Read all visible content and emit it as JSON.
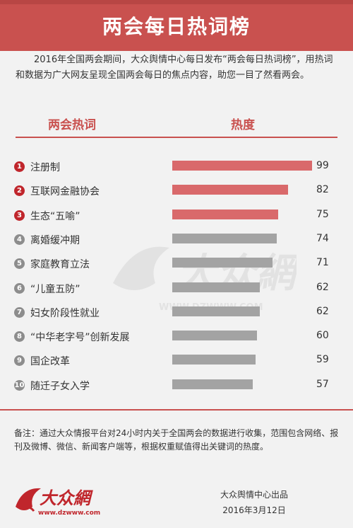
{
  "title": "两会每日热词榜",
  "intro": "2016年全国两会期间，大众舆情中心每日发布“两会每日热词榜”，用热词和数据为广大网友呈现全国两会每日的焦点内容，助您一目了然看两会。",
  "columns": {
    "term": "两会热词",
    "heat": "热度"
  },
  "colors": {
    "accent": "#c9514f",
    "top_bar": "#d9696b",
    "other_bar": "#a3a3a3",
    "rank_top": "#c0262c",
    "rank_other": "#8d8d8d"
  },
  "chart_data": {
    "type": "bar",
    "orientation": "horizontal",
    "categories": [
      "注册制",
      "互联网金融协会",
      "生态“五喻”",
      "离婚缓冲期",
      "家庭教育立法",
      "“儿童五防”",
      "妇女阶段性就业",
      "“中华老字号”创新发展",
      "国企改革",
      "随迁子女入学"
    ],
    "ranks": [
      "1",
      "2",
      "3",
      "4",
      "5",
      "6",
      "7",
      "8",
      "9",
      "10"
    ],
    "values": [
      99,
      82,
      75,
      74,
      71,
      62,
      62,
      60,
      59,
      57
    ],
    "highlight_top": 3
  },
  "note": "备注：通过大众情报平台对24小时内关于全国两会的数据进行收集，范围包含网络、报刊及微博、微信、新闻客户端等，根据权重赋值得出关键词的热度。",
  "logo": {
    "text": "大众網",
    "url": "www.dzwww.com"
  },
  "watermark": {
    "text": "大众網",
    "url": "WWW.DZWWW.COM"
  },
  "footer": {
    "publisher": "大众舆情中心出品",
    "date": "2016年3月12日"
  }
}
